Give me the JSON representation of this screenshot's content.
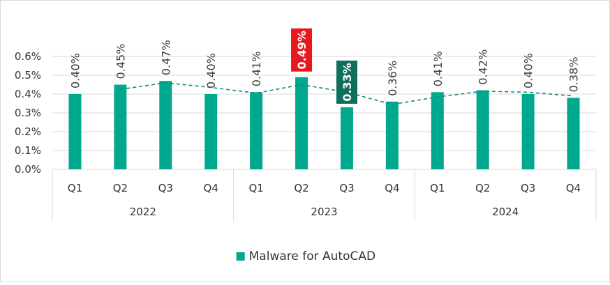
{
  "chart_data": {
    "type": "bar",
    "groups": [
      {
        "label": "2022",
        "categories": [
          "Q1",
          "Q2",
          "Q3",
          "Q4"
        ]
      },
      {
        "label": "2023",
        "categories": [
          "Q1",
          "Q2",
          "Q3",
          "Q4"
        ]
      },
      {
        "label": "2024",
        "categories": [
          "Q1",
          "Q2",
          "Q3",
          "Q4"
        ]
      }
    ],
    "series": [
      {
        "name": "Malware for AutoCAD",
        "color": "#00a88e",
        "values": [
          0.4,
          0.45,
          0.47,
          0.4,
          0.41,
          0.49,
          0.33,
          0.36,
          0.41,
          0.42,
          0.4,
          0.38
        ],
        "data_labels": [
          "0.40%",
          "0.45%",
          "0.47%",
          "0.40%",
          "0.41%",
          "0.49%",
          "0.33%",
          "0.36%",
          "0.41%",
          "0.42%",
          "0.40%",
          "0.38%"
        ]
      }
    ],
    "highlights": [
      {
        "index": 5,
        "color": "#e8191e",
        "text_color": "#ffffff",
        "note": "max"
      },
      {
        "index": 6,
        "color": "#0e6f5c",
        "text_color": "#ffffff",
        "note": "min"
      }
    ],
    "trendline": {
      "type": "moving-average",
      "period": 2,
      "color": "#0e8a73",
      "dash": true
    },
    "y_ticks": [
      "0.0%",
      "0.1%",
      "0.2%",
      "0.3%",
      "0.4%",
      "0.5%",
      "0.6%"
    ],
    "ylim": [
      0,
      0.6
    ],
    "grid": true,
    "legend_position": "bottom",
    "title": "",
    "xlabel": "",
    "ylabel": ""
  }
}
